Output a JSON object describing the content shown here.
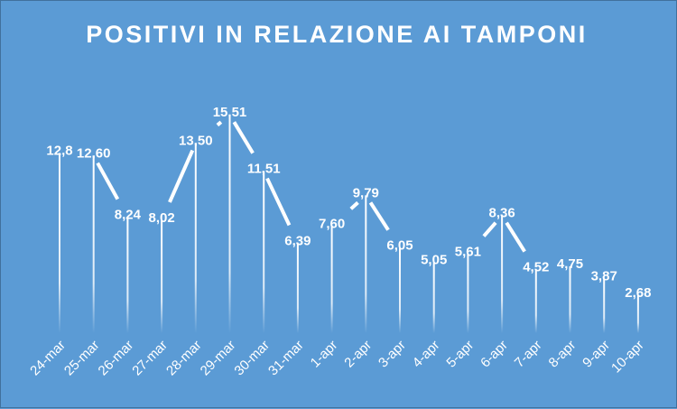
{
  "chart_data": {
    "type": "line",
    "title": "POSITIVI IN RELAZIONE AI TAMPONI",
    "xlabel": "",
    "ylabel": "",
    "categories": [
      "24-mar",
      "25-mar",
      "26-mar",
      "27-mar",
      "28-mar",
      "29-mar",
      "30-mar",
      "31-mar",
      "1-apr",
      "2-apr",
      "3-apr",
      "4-apr",
      "5-apr",
      "6-apr",
      "7-apr",
      "8-apr",
      "9-apr",
      "10-apr"
    ],
    "series": [
      {
        "values": [
          12.8,
          12.6,
          8.24,
          8.02,
          13.5,
          15.51,
          11.51,
          6.39,
          7.6,
          9.79,
          6.05,
          5.05,
          5.61,
          8.36,
          4.52,
          4.75,
          3.87,
          2.68
        ],
        "labels": [
          "12,8",
          "12,60",
          "8,24",
          "8,02",
          "13,50",
          "15,51",
          "11,51",
          "6,39",
          "7,60",
          "9,79",
          "6,05",
          "5,05",
          "5,61",
          "8,36",
          "4,52",
          "4,75",
          "3,87",
          "2,68"
        ]
      }
    ],
    "ylim": [
      0,
      16.1
    ],
    "grid": false,
    "legend": "none",
    "colors": {
      "background": "#5b9bd5",
      "line": "#ffffff",
      "text": "#ffffff"
    }
  }
}
